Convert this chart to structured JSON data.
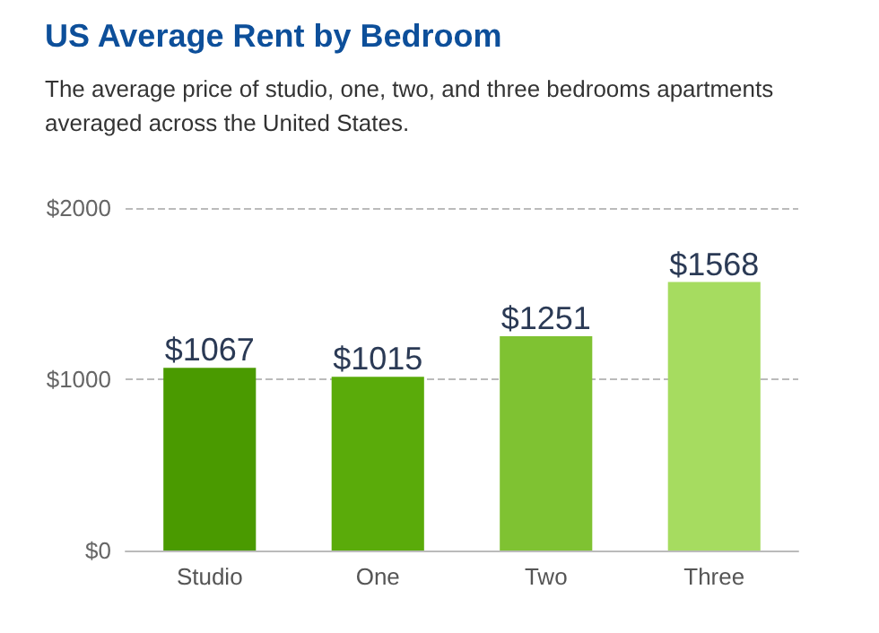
{
  "chart_data": {
    "type": "bar",
    "title": "US Average Rent by Bedroom",
    "subtitle": "The average price of studio, one, two, and three bedrooms apartments averaged across the United States.",
    "categories": [
      "Studio",
      "One",
      "Two",
      "Three"
    ],
    "values": [
      1067,
      1015,
      1251,
      1568
    ],
    "colors": [
      "#4a9a00",
      "#5aab0a",
      "#7fc232",
      "#a6dc60"
    ],
    "value_labels": [
      "$1067",
      "$1015",
      "$1251",
      "$1568"
    ],
    "ylim": [
      0,
      2000
    ],
    "yticks": [
      {
        "value": 0,
        "label": "$0"
      },
      {
        "value": 1000,
        "label": "$1000"
      },
      {
        "value": 2000,
        "label": "$2000"
      }
    ],
    "grid": "y"
  }
}
